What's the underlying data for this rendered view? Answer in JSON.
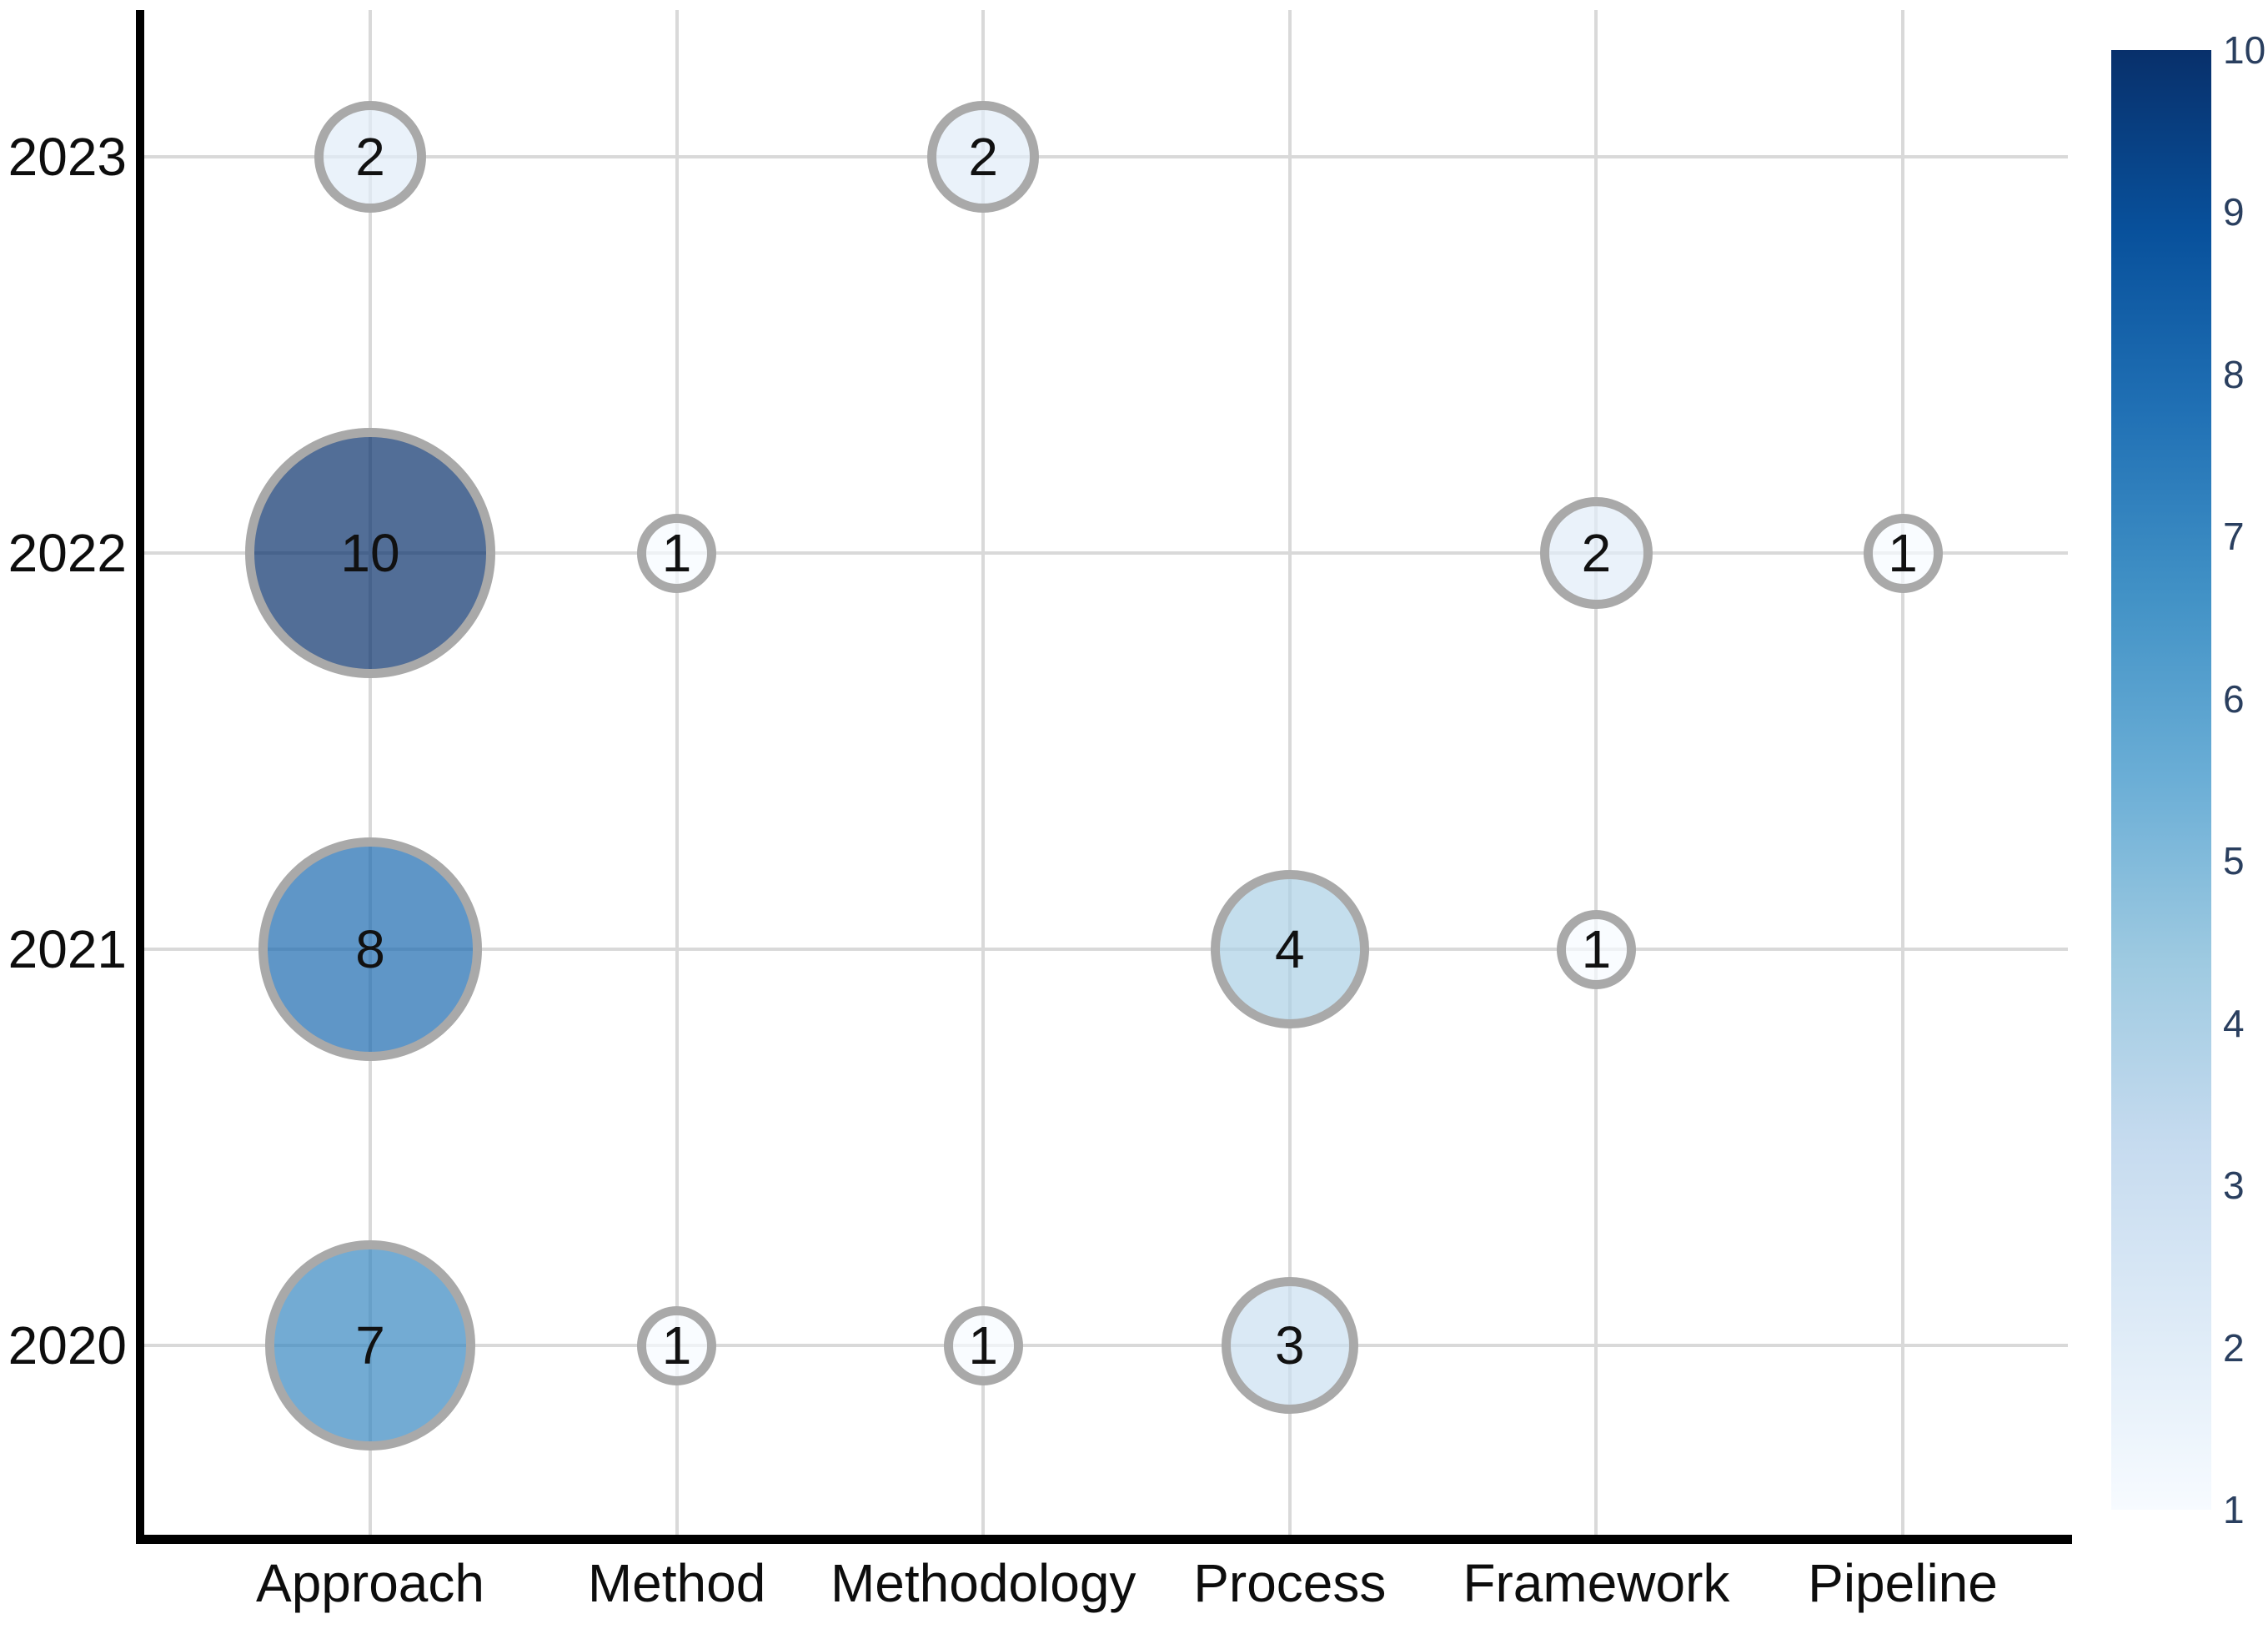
{
  "chart_data": {
    "type": "bubble",
    "title": "",
    "xlabel": "",
    "ylabel": "",
    "grid": true,
    "legend_position": "right-colorbar",
    "x_categories": [
      "Approach",
      "Method",
      "Methodology",
      "Process",
      "Framework",
      "Pipeline"
    ],
    "y_categories": [
      "2023",
      "2022",
      "2021",
      "2020"
    ],
    "points": [
      {
        "x": "Approach",
        "y": "2023",
        "value": 2
      },
      {
        "x": "Methodology",
        "y": "2023",
        "value": 2
      },
      {
        "x": "Approach",
        "y": "2022",
        "value": 10
      },
      {
        "x": "Method",
        "y": "2022",
        "value": 1
      },
      {
        "x": "Framework",
        "y": "2022",
        "value": 2
      },
      {
        "x": "Pipeline",
        "y": "2022",
        "value": 1
      },
      {
        "x": "Approach",
        "y": "2021",
        "value": 8
      },
      {
        "x": "Process",
        "y": "2021",
        "value": 4
      },
      {
        "x": "Framework",
        "y": "2021",
        "value": 1
      },
      {
        "x": "Approach",
        "y": "2020",
        "value": 7
      },
      {
        "x": "Method",
        "y": "2020",
        "value": 1
      },
      {
        "x": "Methodology",
        "y": "2020",
        "value": 1
      },
      {
        "x": "Process",
        "y": "2020",
        "value": 3
      }
    ],
    "bubble_fill_rgba_by_value": {
      "1": "rgba(247,251,255,0.70)",
      "2": "rgba(225,237,248,0.70)",
      "3": "rgba(203,223,241,0.70)",
      "4": "rgba(171,208,230,0.70)",
      "7": "rgba(55,135,192,0.70)",
      "8": "rgba(27,106,175,0.70)",
      "10": "rgba(8,48,107,0.70)"
    },
    "bubble_stroke_color": "#a9a9a9",
    "grid_color": "#d9d9d9",
    "axis_color": "#000000",
    "tick_label_color": "#0d0d0d",
    "colorbar": {
      "min": 1,
      "max": 10,
      "ticks": [
        "10",
        "9",
        "8",
        "7",
        "6",
        "5",
        "4",
        "3",
        "2",
        "1"
      ],
      "tick_label_color": "#2a3f5f",
      "gradient_stops_bottom_to_top": [
        "#f7fbff",
        "#deebf7",
        "#c6dbef",
        "#9ecae1",
        "#6baed6",
        "#4292c6",
        "#2171b5",
        "#08519c",
        "#08306b"
      ]
    }
  }
}
